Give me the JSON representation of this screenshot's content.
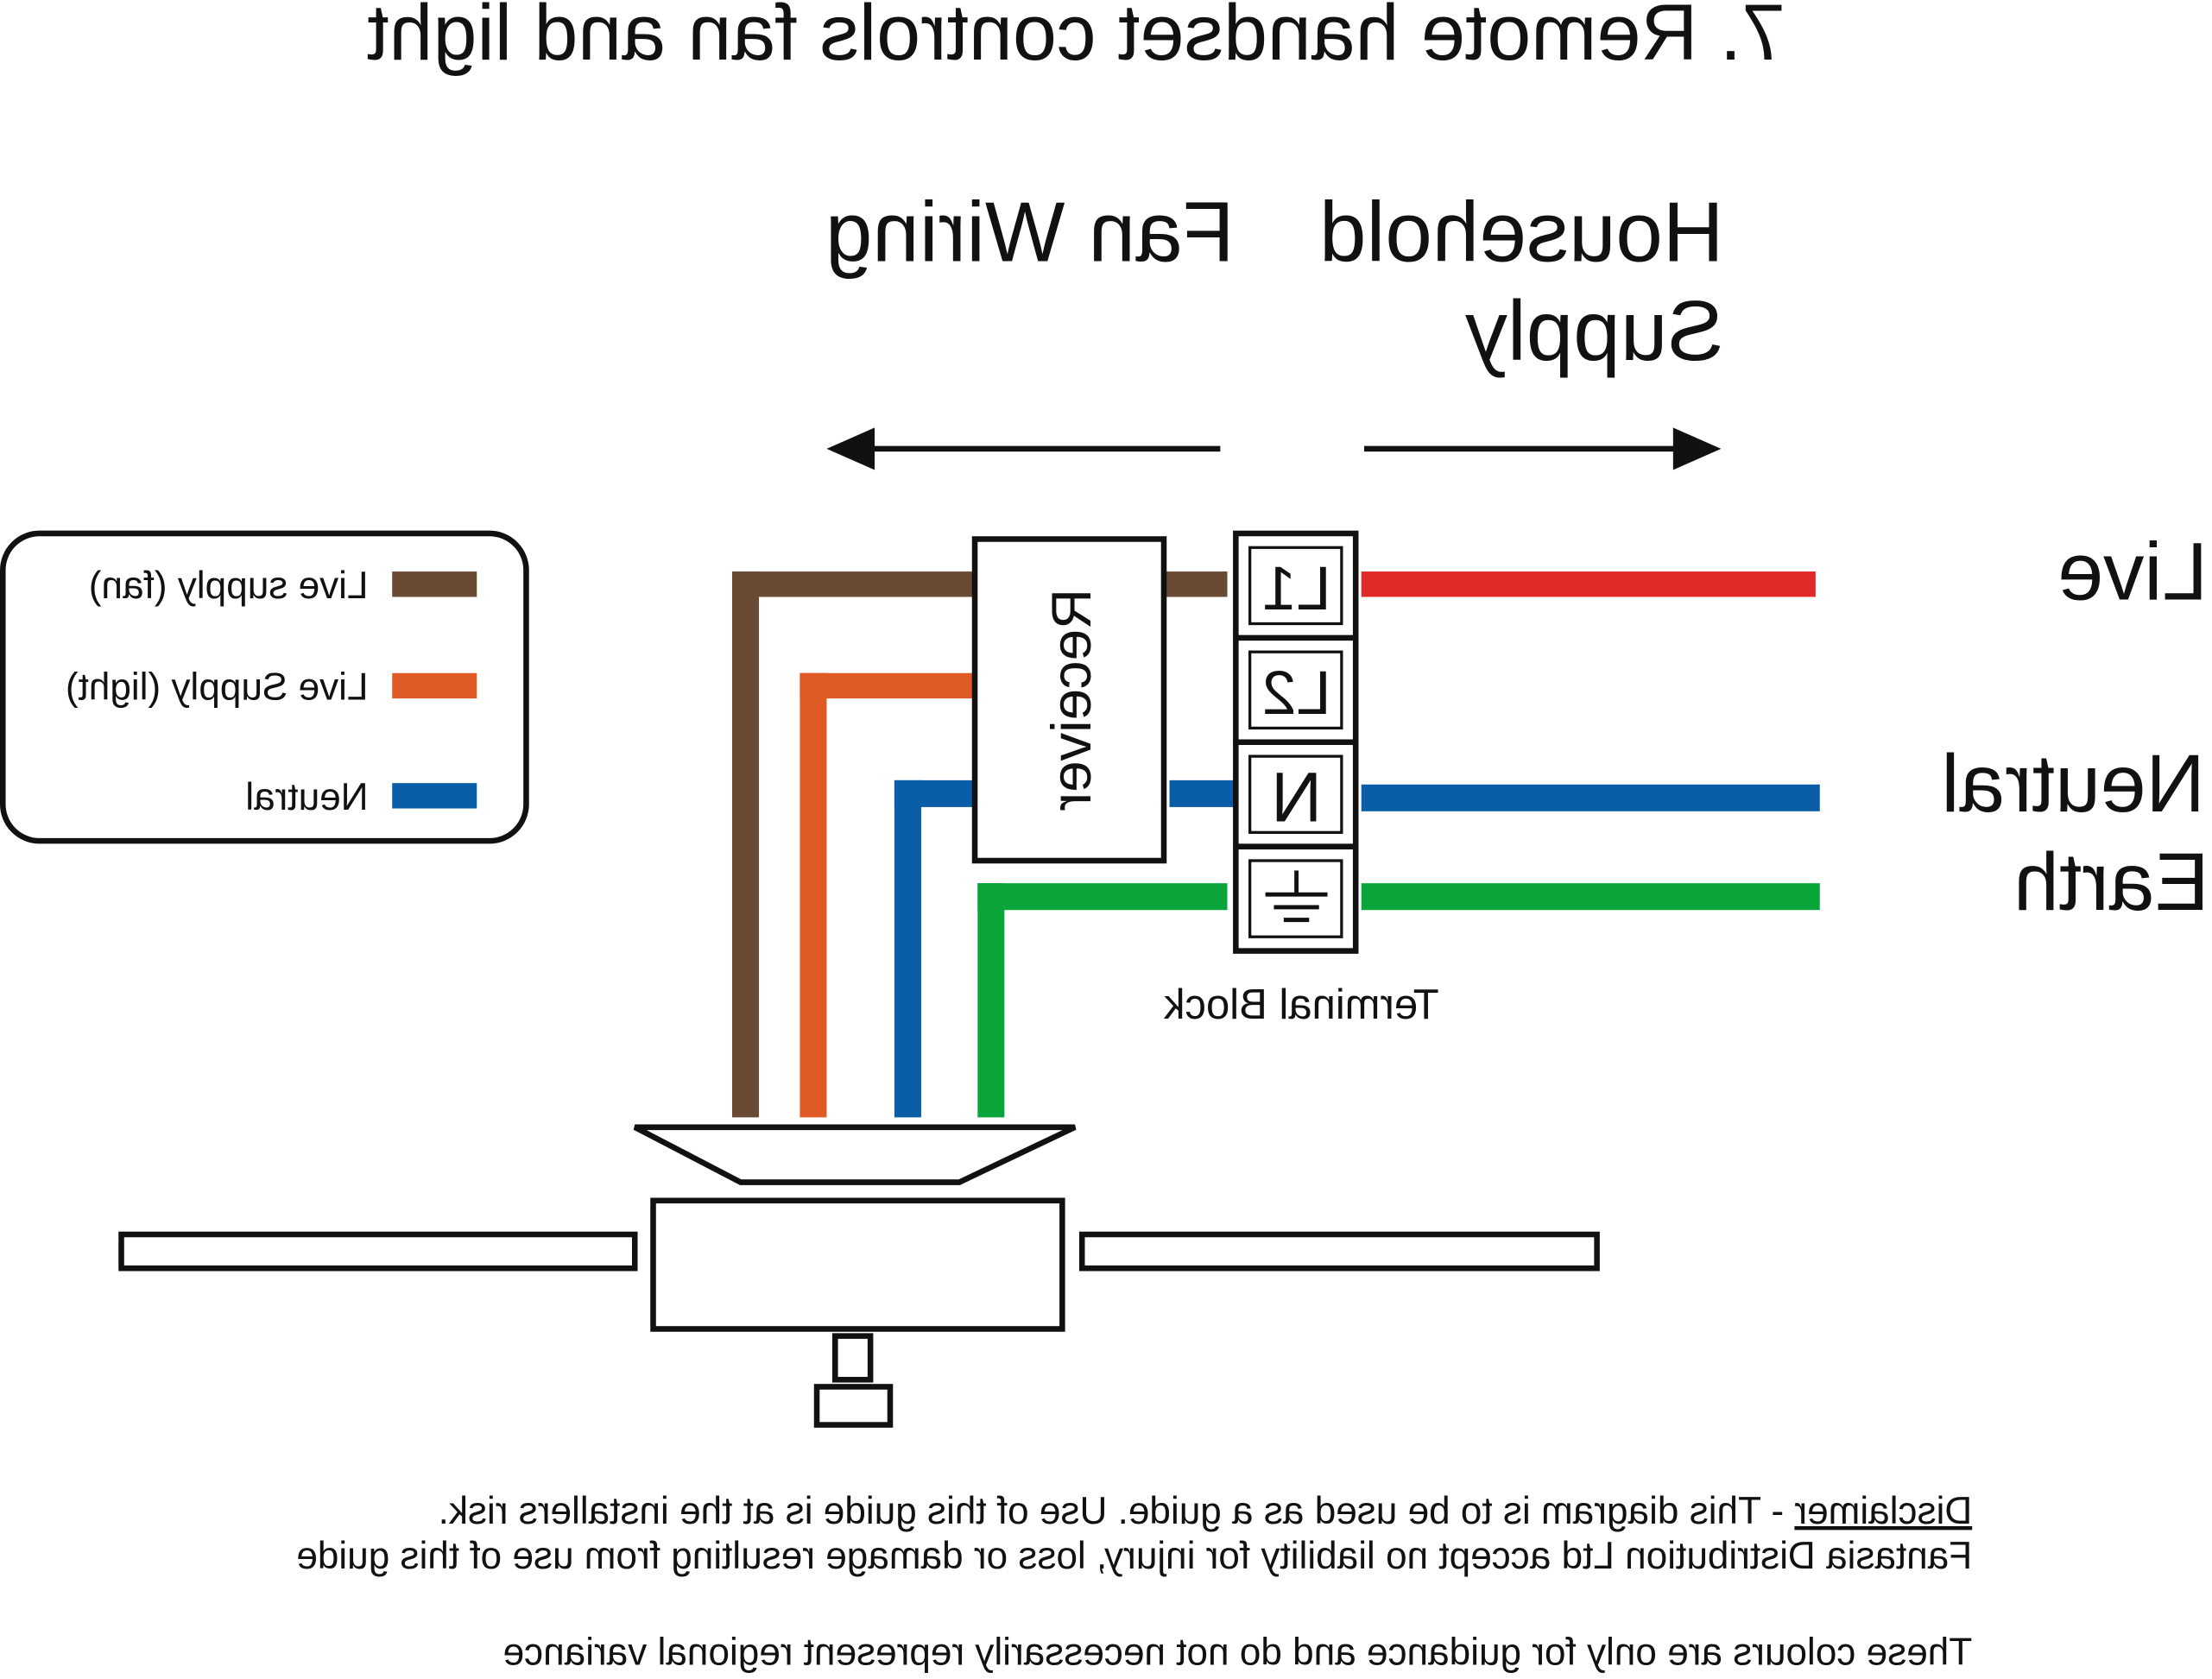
{
  "title": "7. Remote handset controls fan and light",
  "mirrored": true,
  "headings": {
    "fan_wiring": "Fan Wiring",
    "household_line1": "Household",
    "household_line2": "Supply"
  },
  "legend": {
    "items": [
      {
        "label": "Live supply (fan)",
        "color": "#6b4a33"
      },
      {
        "label": "Live Supply (light)",
        "color": "#e05a25"
      },
      {
        "label": "Neutral",
        "color": "#0a5ea8"
      }
    ]
  },
  "receiver": {
    "label": "Receiver"
  },
  "terminal_block": {
    "label": "Terminal Block",
    "terminals": [
      "L1",
      "L2",
      "N",
      "earth-symbol"
    ]
  },
  "supply_labels": {
    "live": "Live",
    "neutral": "Neutral",
    "earth": "Earth"
  },
  "wire_colors": {
    "live": "#e02a2a",
    "neutral": "#0a5ea8",
    "earth": "#0aa53a",
    "fan": "#6b4a33",
    "light": "#e05a25"
  },
  "disclaimer": {
    "heading": "Disclaimer",
    "line1_rest": " - This diagram is to be used as a guide.  Use of this guide is at the installers risk.",
    "line2": "Fantasia Distribution Ltd accept no liability for injury, loss or damage resulting from use of this guide",
    "line3": "These colours are only for guidance and do not necessarily represent regional variance"
  }
}
